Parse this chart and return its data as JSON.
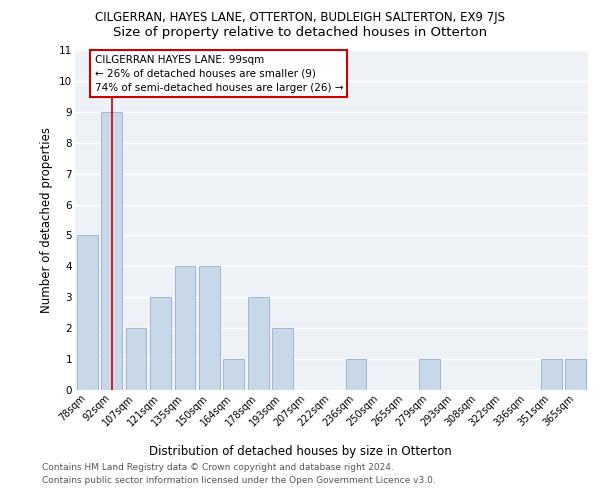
{
  "title": "CILGERRAN, HAYES LANE, OTTERTON, BUDLEIGH SALTERTON, EX9 7JS",
  "subtitle": "Size of property relative to detached houses in Otterton",
  "xlabel": "Distribution of detached houses by size in Otterton",
  "ylabel": "Number of detached properties",
  "footer_line1": "Contains HM Land Registry data © Crown copyright and database right 2024.",
  "footer_line2": "Contains public sector information licensed under the Open Government Licence v3.0.",
  "categories": [
    "78sqm",
    "92sqm",
    "107sqm",
    "121sqm",
    "135sqm",
    "150sqm",
    "164sqm",
    "178sqm",
    "193sqm",
    "207sqm",
    "222sqm",
    "236sqm",
    "250sqm",
    "265sqm",
    "279sqm",
    "293sqm",
    "308sqm",
    "322sqm",
    "336sqm",
    "351sqm",
    "365sqm"
  ],
  "values": [
    5,
    9,
    2,
    3,
    4,
    4,
    1,
    3,
    2,
    0,
    0,
    1,
    0,
    0,
    1,
    0,
    0,
    0,
    0,
    1,
    1
  ],
  "bar_color": "#c8d8e8",
  "bar_edge_color": "#a0b8d0",
  "highlight_index": 1,
  "highlight_line_color": "#cc0000",
  "annotation_box_color": "#ffffff",
  "annotation_box_edge": "#cc0000",
  "annotation_title": "CILGERRAN HAYES LANE: 99sqm",
  "annotation_line1": "← 26% of detached houses are smaller (9)",
  "annotation_line2": "74% of semi-detached houses are larger (26) →",
  "ylim": [
    0,
    11
  ],
  "yticks": [
    0,
    1,
    2,
    3,
    4,
    5,
    6,
    7,
    8,
    9,
    10,
    11
  ],
  "background_color": "#eef2f7",
  "grid_color": "#ffffff",
  "title_fontsize": 8.5,
  "subtitle_fontsize": 9.5,
  "axis_label_fontsize": 8.5,
  "tick_fontsize": 7,
  "footer_fontsize": 6.5,
  "ylabel_fontsize": 8.5,
  "annotation_fontsize": 7.5
}
